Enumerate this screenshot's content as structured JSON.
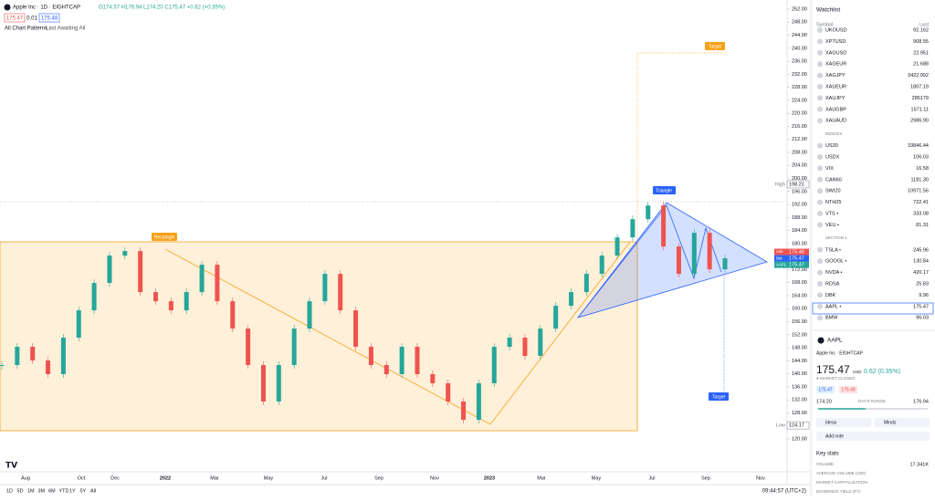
{
  "header": {
    "symbol": "Apple Inc · 1D · EIGHTCAP",
    "ohlc": "O174.57 H176.94 L174.20 C175.47 +0.62 (+0.35%)",
    "sell": "175.47",
    "spread": "0.01",
    "buy": "175.48",
    "indicator": "All Chart Patterns",
    "indicator_args": "Last Awaiting All"
  },
  "chart_data": {
    "type": "candlestick",
    "values": [
      142.7,
      148.3,
      144.1,
      139.9,
      151.1,
      159.5,
      167.9,
      176.3,
      177.7,
      165.1,
      162.3,
      159.5,
      165.1,
      173.5,
      162.3,
      153.9,
      142.7,
      131.5,
      142.7,
      153.9,
      162.3,
      170.7,
      159.5,
      148.3,
      142.7,
      139.9,
      148.3,
      139.9,
      137.1,
      131.5,
      125.9,
      137.1,
      148.3,
      151.1,
      145.5,
      153.9,
      160.9,
      165.1,
      170.7,
      176.3,
      181.9,
      187.5,
      191.7,
      179.1,
      170.7,
      183.3,
      172.1,
      175.47
    ],
    "up_color": "#26a69a",
    "down_color": "#ef5350",
    "ylim": [
      120,
      252
    ],
    "yticks": [
      {
        "value": 252,
        "label": "252.00"
      },
      {
        "value": 248,
        "label": "248.00"
      },
      {
        "value": 244,
        "label": "244.00"
      },
      {
        "value": 240,
        "label": "240.00"
      },
      {
        "value": 236,
        "label": "236.00"
      },
      {
        "value": 232,
        "label": "232.00"
      },
      {
        "value": 228,
        "label": "228.00"
      },
      {
        "value": 224,
        "label": "224.00"
      },
      {
        "value": 220,
        "label": "220.00"
      },
      {
        "value": 216,
        "label": "216.00"
      },
      {
        "value": 212,
        "label": "212.00"
      },
      {
        "value": 208,
        "label": "208.00"
      },
      {
        "value": 204,
        "label": "204.00"
      },
      {
        "value": 200,
        "label": "200.00"
      },
      {
        "value": 196,
        "label": "196.00"
      },
      {
        "value": 192,
        "label": "192.00"
      },
      {
        "value": 188,
        "label": "188.00"
      },
      {
        "value": 184,
        "label": "184.00"
      },
      {
        "value": 180,
        "label": "180.00"
      },
      {
        "value": 176,
        "label": "176.00"
      },
      {
        "value": 172,
        "label": "172.00"
      },
      {
        "value": 168,
        "label": "168.00"
      },
      {
        "value": 164,
        "label": "164.00"
      },
      {
        "value": 160,
        "label": "160.00"
      },
      {
        "value": 156,
        "label": "156.00"
      },
      {
        "value": 152,
        "label": "152.00"
      },
      {
        "value": 148,
        "label": "148.00"
      },
      {
        "value": 144,
        "label": "144.00"
      },
      {
        "value": 140,
        "label": "140.00"
      },
      {
        "value": 136,
        "label": "136.00"
      },
      {
        "value": 132,
        "label": "132.00"
      },
      {
        "value": 128,
        "label": "128.00"
      },
      {
        "value": 124,
        "label": "124.00"
      },
      {
        "value": 120,
        "label": "120.00"
      }
    ],
    "xaxis_labels": [
      "Aug",
      "Oct",
      "Dec",
      "2022",
      "Mar",
      "May",
      "Jul",
      "Sep",
      "Nov",
      "2023",
      "Mar",
      "May",
      "Jul",
      "Sep",
      "Nov"
    ],
    "high": {
      "label": "High",
      "value": 198.21
    },
    "low": {
      "label": "Low",
      "value": 124.17
    },
    "quotes": [
      {
        "label": "Ask",
        "value": 175.48,
        "color": "#ef5350"
      },
      {
        "label": "Bid",
        "value": 175.47,
        "color": "#2962ff"
      },
      {
        "label": "AAPL",
        "value": 175.47,
        "color": "#26a69a"
      }
    ],
    "annotations": {
      "rectangle": "Rectangle",
      "triangle": "Triangle",
      "target_up": "Target",
      "target_down": "Target"
    }
  },
  "watchlist": {
    "title": "Watchlist",
    "col_symbol": "Symbol",
    "col_last": "Last",
    "rows": [
      {
        "symbol": "UKOUSD",
        "last": "92.162"
      },
      {
        "symbol": "XPTUSD",
        "last": "908.55"
      },
      {
        "symbol": "XAGUSD",
        "last": "22.951"
      },
      {
        "symbol": "XAGEUR",
        "last": "21.688"
      },
      {
        "symbol": "XAGJPY",
        "last": "3422.992"
      },
      {
        "symbol": "XAUEUR",
        "last": "1807.19"
      },
      {
        "symbol": "XAUJPY",
        "last": "285179"
      },
      {
        "symbol": "XAUGBP",
        "last": "1571.11"
      },
      {
        "symbol": "XAUAUD",
        "last": "2986.90"
      },
      {
        "section": "INDICES"
      },
      {
        "symbol": "US30",
        "last": "33846.44"
      },
      {
        "symbol": "USDX",
        "last": "106.03"
      },
      {
        "symbol": "VIX",
        "last": "16.58"
      },
      {
        "symbol": "CAN60",
        "last": "1181.30"
      },
      {
        "symbol": "SWI20",
        "last": "10971.56"
      },
      {
        "symbol": "NTH25",
        "last": "722.41"
      },
      {
        "symbol": "VTS •",
        "last": "333.08"
      },
      {
        "symbol": "VEU •",
        "last": "81.31"
      },
      {
        "section": "SECTION 1"
      },
      {
        "symbol": "TSLA •",
        "last": "245.96"
      },
      {
        "symbol": "GOOGL •",
        "last": "130.84"
      },
      {
        "symbol": "NVDA •",
        "last": "420.17"
      },
      {
        "symbol": "RDSA",
        "last": "25.83"
      },
      {
        "symbol": "DBK",
        "last": "9.96"
      },
      {
        "symbol": "AAPL •",
        "last": "175.47"
      },
      {
        "symbol": "BMW",
        "last": "96.03"
      }
    ]
  },
  "detail": {
    "symbol": "AAPL",
    "name": "Apple Inc · EIGHTCAP",
    "price": "175.47",
    "currency": "USD",
    "change": "0.62 (0.35%)",
    "status": "● MARKET CLOSED",
    "sell": "175.47",
    "buy": "175.48",
    "day_low": "174.20",
    "range_label": "DAY'S RANGE",
    "day_high": "176.94",
    "ideas": "Ideas",
    "minds": "Minds",
    "add_note": "Add note",
    "key_stats": "Key stats",
    "stats": [
      {
        "label": "VOLUME",
        "value": "17.341K"
      },
      {
        "label": "AVERAGE VOLUME (10D)"
      },
      {
        "label": "MARKET CAPITALIZATION"
      },
      {
        "label": "DIVIDENDS YIELD (FY)"
      }
    ]
  },
  "footer": {
    "ranges": [
      "1D",
      "5D",
      "1M",
      "3M",
      "6M",
      "YTD",
      "1Y",
      "5Y",
      "All"
    ],
    "clock": "09:44:57 (UTC+2)"
  }
}
